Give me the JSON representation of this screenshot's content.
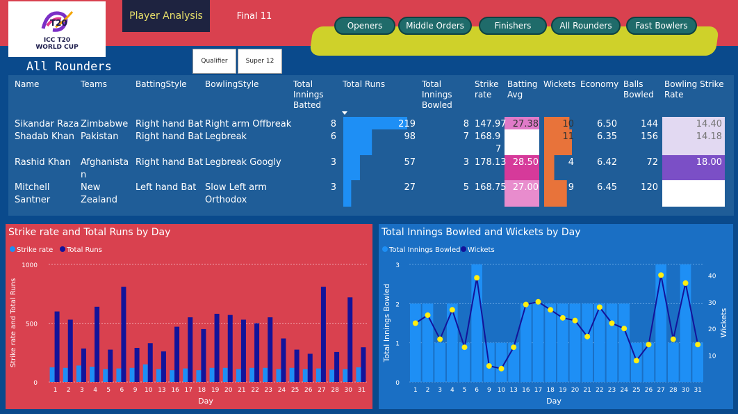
{
  "header": {
    "logo_text_line1": "ICC T20",
    "logo_text_line2": "WORLD CUP",
    "nav_active": "Player Analysis",
    "nav_other": "Final 11",
    "categories": [
      "Openers",
      "Middle Orders",
      "Finishers",
      "All Rounders",
      "Fast Bowlers"
    ],
    "stages": [
      "Qualifier",
      "Super 12"
    ],
    "colors": {
      "topbar": "#d9414f",
      "pill": "#1f6b6a",
      "band": "#cfd12a"
    }
  },
  "section_title": "All Rounders",
  "table": {
    "columns": [
      "Name",
      "Teams",
      "BattingStyle",
      "BowlingStyle",
      "Total Innings Batted",
      "Total Runs",
      "Total Innings Bowled",
      "Strike rate",
      "Batting Avg",
      "Wickets",
      "Economy",
      "Balls Bowled",
      "Bowling Strike Rate"
    ],
    "rows": [
      {
        "name": "Sikandar Raza",
        "team": "Zimbabwe",
        "batting": "Right hand Bat",
        "bowling": "Right arm Offbreak",
        "inn_bat": "8",
        "runs": "219",
        "runs_val": 219,
        "inn_bowl": "8",
        "sr": "147.97",
        "avg": "27.38",
        "avg_color": "#e07ac8",
        "wkts": "10",
        "wkts_val": 10,
        "econ": "6.50",
        "balls": "144",
        "bsr": "14.40",
        "bsr_color": "#e2d9f2"
      },
      {
        "name": "Shadab Khan",
        "team": "Pakistan",
        "batting": "Right hand Bat",
        "bowling": "Legbreak",
        "inn_bat": "6",
        "runs": "98",
        "runs_val": 98,
        "inn_bowl": "7",
        "sr": "168.9",
        "sr2": "7",
        "avg": "",
        "avg_color": "#ffffff",
        "wkts": "11",
        "wkts_val": 11,
        "econ": "6.35",
        "balls": "156",
        "bsr": "14.18",
        "bsr_color": "#e2d9f2"
      },
      {
        "name": "Rashid Khan",
        "team": "Afghanista",
        "team2": "n",
        "batting": "Right hand Bat",
        "bowling": "Legbreak Googly",
        "inn_bat": "3",
        "runs": "57",
        "runs_val": 57,
        "inn_bowl": "3",
        "sr": "178.13",
        "avg": "28.50",
        "avg_color": "#d63a9a",
        "wkts": "4",
        "wkts_val": 4,
        "econ": "6.42",
        "balls": "72",
        "bsr": "18.00",
        "bsr_color": "#7b4fc6"
      },
      {
        "name": "Mitchell",
        "name2": "Santner",
        "team": "New",
        "team2": "Zealand",
        "batting": "Left hand Bat",
        "bowling": "Slow Left arm",
        "bowling2": "Orthodox",
        "inn_bat": "3",
        "runs": "27",
        "runs_val": 27,
        "inn_bowl": "5",
        "sr": "168.75",
        "avg": "27.00",
        "avg_color": "#e88ccd",
        "wkts": "9",
        "wkts_val": 9,
        "econ": "6.45",
        "balls": "120",
        "bsr": "",
        "bsr_color": "#ffffff"
      }
    ]
  },
  "charts": {
    "left": {
      "title": "Strike rate and Total Runs by Day",
      "legend": [
        "Strike rate",
        "Total Runs"
      ],
      "ylabel": "Strike rate and Total Runs",
      "xlabel": "Day",
      "bg": "#d9414f",
      "color_sr": "#1e8ff5",
      "color_runs": "#13139a"
    },
    "right": {
      "title": "Total Innings Bowled and Wickets by Day",
      "legend": [
        "Total Innings Bowled",
        "Wickets"
      ],
      "ylabel_left": "Total Innings Bowled",
      "ylabel_right": "Wickets",
      "xlabel": "Day",
      "bg": "#1a6fc4",
      "color_bars": "#1e8ff5",
      "color_line": "#13139a",
      "color_dots": "#ffee11"
    }
  },
  "chart_data": [
    {
      "type": "bar",
      "title": "Strike rate and Total Runs by Day",
      "xlabel": "Day",
      "ylabel": "Strike rate and Total Runs",
      "ylim": [
        0,
        1000
      ],
      "yticks": [
        "0",
        "500",
        "1000"
      ],
      "categories": [
        "1",
        "2",
        "3",
        "4",
        "5",
        "6",
        "9",
        "10",
        "13",
        "16",
        "17",
        "18",
        "19",
        "20",
        "21",
        "22",
        "23",
        "24",
        "25",
        "26",
        "27",
        "28",
        "30",
        "31"
      ],
      "series": [
        {
          "name": "Strike rate",
          "values": [
            125,
            120,
            140,
            130,
            110,
            115,
            120,
            150,
            110,
            100,
            115,
            100,
            120,
            120,
            110,
            120,
            120,
            110,
            120,
            110,
            115,
            105,
            110,
            125
          ]
        },
        {
          "name": "Total Runs",
          "values": [
            600,
            530,
            285,
            640,
            275,
            810,
            290,
            330,
            260,
            470,
            550,
            450,
            580,
            570,
            530,
            500,
            550,
            370,
            275,
            240,
            810,
            255,
            720,
            295
          ]
        }
      ]
    },
    {
      "type": "bar",
      "title": "Total Innings Bowled and Wickets by Day",
      "xlabel": "Day",
      "ylabel": "Total Innings Bowled",
      "ylabel_right": "Wickets",
      "ylim": [
        0,
        3
      ],
      "ylim_right": [
        0,
        44
      ],
      "yticks": [
        "0",
        "1",
        "2",
        "3"
      ],
      "yticks_right": [
        "10",
        "20",
        "30",
        "40"
      ],
      "categories": [
        "1",
        "2",
        "3",
        "4",
        "5",
        "6",
        "9",
        "10",
        "13",
        "16",
        "17",
        "18",
        "19",
        "20",
        "21",
        "22",
        "23",
        "24",
        "25",
        "26",
        "27",
        "28",
        "30",
        "31"
      ],
      "series": [
        {
          "name": "Total Innings Bowled",
          "values": [
            2,
            2,
            1,
            2,
            1,
            3,
            1,
            1,
            1,
            2,
            2,
            2,
            2,
            2,
            2,
            2,
            2,
            2,
            1,
            1,
            3,
            1,
            3,
            1
          ]
        },
        {
          "name": "Wickets",
          "values": [
            22,
            25,
            16,
            27,
            13,
            39,
            6,
            5,
            13,
            29,
            30,
            27,
            24,
            23,
            17,
            28,
            22,
            20,
            8,
            14,
            40,
            16,
            37,
            14
          ]
        }
      ]
    }
  ]
}
